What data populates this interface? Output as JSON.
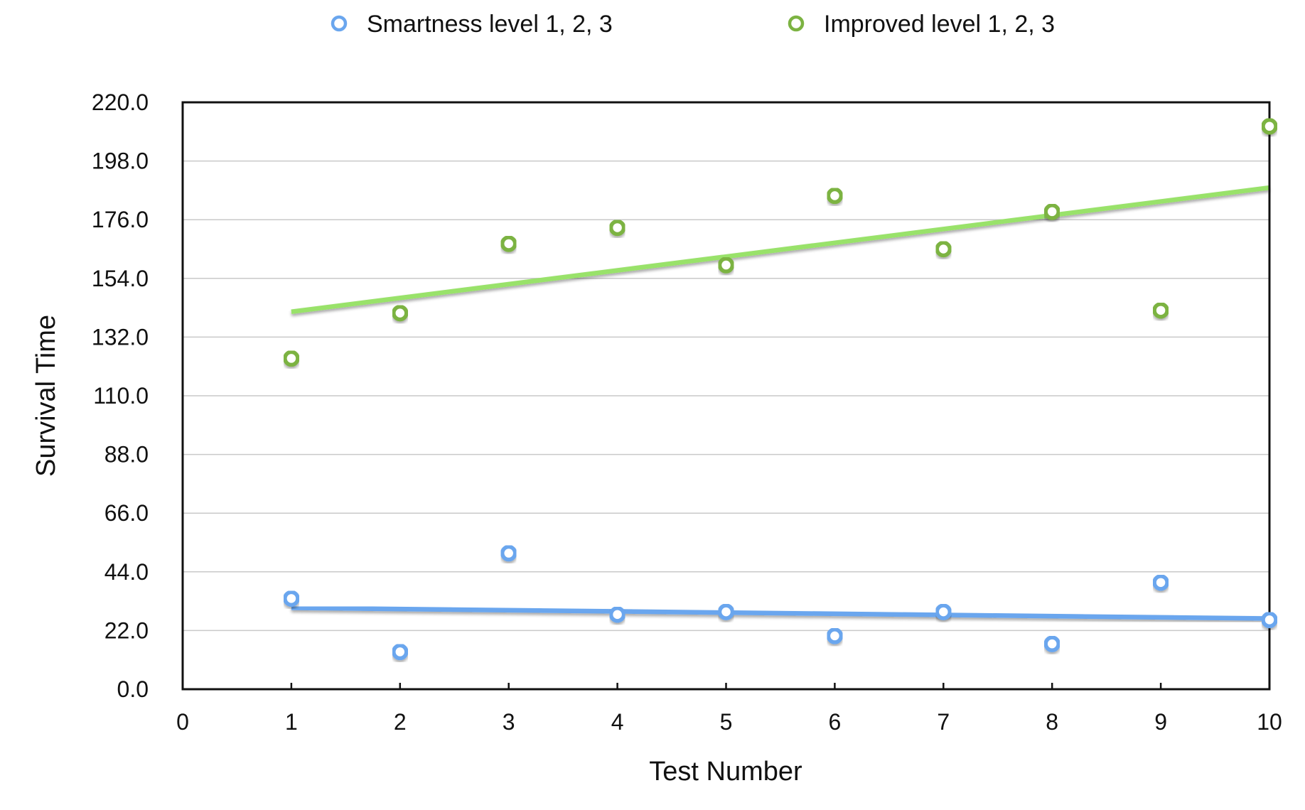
{
  "chart_data": {
    "type": "scatter",
    "title": "",
    "xlabel": "Test Number",
    "ylabel": "Survival Time",
    "xlim": [
      0,
      10
    ],
    "ylim": [
      0,
      220
    ],
    "x_ticks": [
      "0",
      "1",
      "2",
      "3",
      "4",
      "5",
      "6",
      "7",
      "8",
      "9",
      "10"
    ],
    "y_ticks": [
      "0.0",
      "22.0",
      "44.0",
      "66.0",
      "88.0",
      "110.0",
      "132.0",
      "154.0",
      "176.0",
      "198.0",
      "220.0"
    ],
    "grid": true,
    "legend_position": "top",
    "series": [
      {
        "name": "Smartness level 1, 2, 3",
        "color": "#6aa6ee",
        "x": [
          1,
          2,
          3,
          4,
          5,
          6,
          7,
          8,
          9,
          10
        ],
        "y": [
          34,
          14,
          51,
          28,
          29,
          20,
          29,
          17,
          40,
          26
        ],
        "trendline": {
          "x": [
            1,
            10
          ],
          "y": [
            30.5,
            26.5
          ]
        }
      },
      {
        "name": "Improved level 1, 2, 3",
        "color": "#7cb342",
        "trend_color": "#99e26a",
        "x": [
          1,
          2,
          3,
          4,
          5,
          6,
          7,
          8,
          9,
          10
        ],
        "y": [
          124,
          141,
          167,
          173,
          159,
          185,
          165,
          179,
          142,
          211
        ],
        "trendline": {
          "x": [
            1,
            10
          ],
          "y": [
            141.5,
            188
          ]
        }
      }
    ]
  }
}
